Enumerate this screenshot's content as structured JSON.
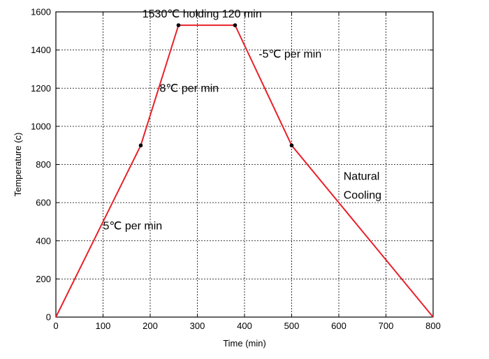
{
  "chart_data": {
    "type": "line",
    "xlabel": "Time (min)",
    "ylabel": "Temperature (c)",
    "xlim": [
      0,
      800
    ],
    "ylim": [
      0,
      1600
    ],
    "x_ticks": [
      0,
      100,
      200,
      300,
      400,
      500,
      600,
      700,
      800
    ],
    "y_ticks": [
      0,
      200,
      400,
      600,
      800,
      1000,
      1200,
      1400,
      1600
    ],
    "grid": true,
    "line_color": "#e8212a",
    "series": [
      {
        "points": [
          {
            "x": 0,
            "y": 0
          },
          {
            "x": 180,
            "y": 900
          },
          {
            "x": 260,
            "y": 1530
          },
          {
            "x": 380,
            "y": 1530
          },
          {
            "x": 500,
            "y": 900
          },
          {
            "x": 800,
            "y": 0
          }
        ],
        "markers": [
          {
            "x": 180,
            "y": 900
          },
          {
            "x": 260,
            "y": 1530
          },
          {
            "x": 380,
            "y": 1530
          },
          {
            "x": 500,
            "y": 900
          }
        ]
      }
    ],
    "annotations": [
      {
        "text": "1530℃ holding 120 min",
        "x": 310,
        "y": 1570,
        "anchor": "middle"
      },
      {
        "text": "-5℃ per min",
        "x": 430,
        "y": 1360,
        "anchor": "start"
      },
      {
        "text": "8℃ per min",
        "x": 220,
        "y": 1180,
        "anchor": "start"
      },
      {
        "text": "Natural",
        "x": 610,
        "y": 720,
        "anchor": "start"
      },
      {
        "text": "Cooling",
        "x": 610,
        "y": 620,
        "anchor": "start"
      },
      {
        "text": "5℃ per min",
        "x": 100,
        "y": 460,
        "anchor": "start"
      }
    ]
  }
}
